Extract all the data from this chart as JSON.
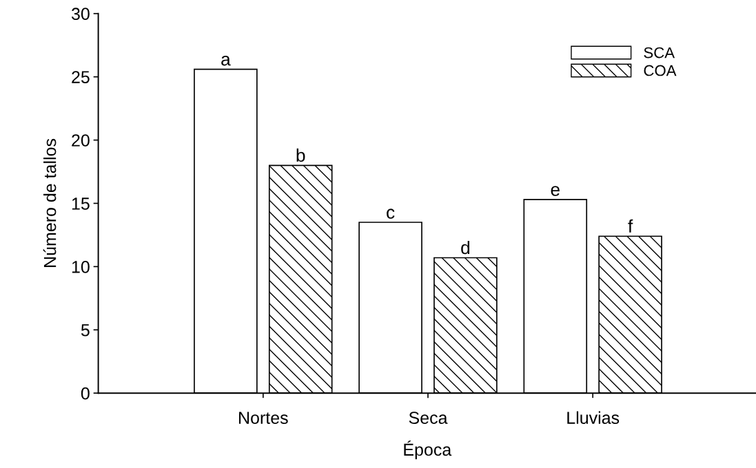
{
  "chart_data": {
    "type": "bar",
    "xlabel": "Época",
    "ylabel": "Número de tallos",
    "categories": [
      "Nortes",
      "Seca",
      "Lluvias"
    ],
    "series": [
      {
        "name": "SCA",
        "color": "#ffffff",
        "values": [
          25.6,
          13.5,
          15.3
        ],
        "value_labels": [
          "a",
          "c",
          "e"
        ]
      },
      {
        "name": "COA",
        "color": "#000000",
        "values": [
          18.0,
          10.7,
          12.4
        ],
        "value_labels": [
          "b",
          "d",
          "f"
        ]
      }
    ],
    "ylim": [
      0,
      30
    ],
    "yticks": [
      0,
      5,
      10,
      15,
      20,
      25,
      30
    ],
    "grid": false,
    "legend": "top right"
  }
}
